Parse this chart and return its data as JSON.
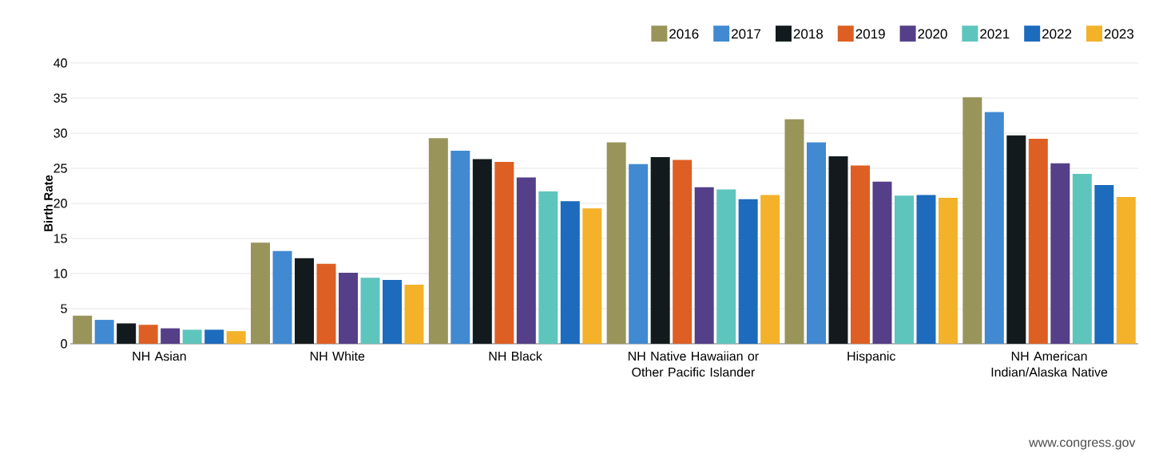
{
  "chart_data": {
    "type": "bar",
    "ylabel": "Birth Rate",
    "categories": [
      "NH Asian",
      "NH White",
      "NH Black",
      "NH Native Hawaiian or Other Pacific Islander",
      "Hispanic",
      "NH American Indian/Alaska Native"
    ],
    "series": [
      {
        "name": "2016",
        "color": "#999459",
        "values": [
          4.0,
          14.4,
          29.3,
          28.7,
          32.0,
          35.1
        ]
      },
      {
        "name": "2017",
        "color": "#4189d1",
        "values": [
          3.4,
          13.2,
          27.5,
          25.6,
          28.7,
          33.0
        ]
      },
      {
        "name": "2018",
        "color": "#121a1d",
        "values": [
          2.9,
          12.2,
          26.3,
          26.6,
          26.7,
          29.7
        ]
      },
      {
        "name": "2019",
        "color": "#de5f23",
        "values": [
          2.7,
          11.4,
          25.9,
          26.2,
          25.4,
          29.2
        ]
      },
      {
        "name": "2020",
        "color": "#553f88",
        "values": [
          2.2,
          10.1,
          23.7,
          22.3,
          23.1,
          25.7
        ]
      },
      {
        "name": "2021",
        "color": "#5ec5bd",
        "values": [
          2.0,
          9.4,
          21.7,
          22.0,
          21.1,
          24.2
        ]
      },
      {
        "name": "2022",
        "color": "#1d6bbd",
        "values": [
          2.0,
          9.1,
          20.3,
          20.6,
          21.2,
          22.6
        ]
      },
      {
        "name": "2023",
        "color": "#f3b22a",
        "values": [
          1.8,
          8.4,
          19.3,
          21.2,
          20.8,
          20.9
        ]
      }
    ],
    "ylim": [
      0,
      40
    ],
    "yticks": [
      0,
      5,
      10,
      15,
      20,
      25,
      30,
      35,
      40
    ],
    "grid": "y",
    "legend": "top right",
    "annotations": [
      "www.congress.gov"
    ]
  }
}
